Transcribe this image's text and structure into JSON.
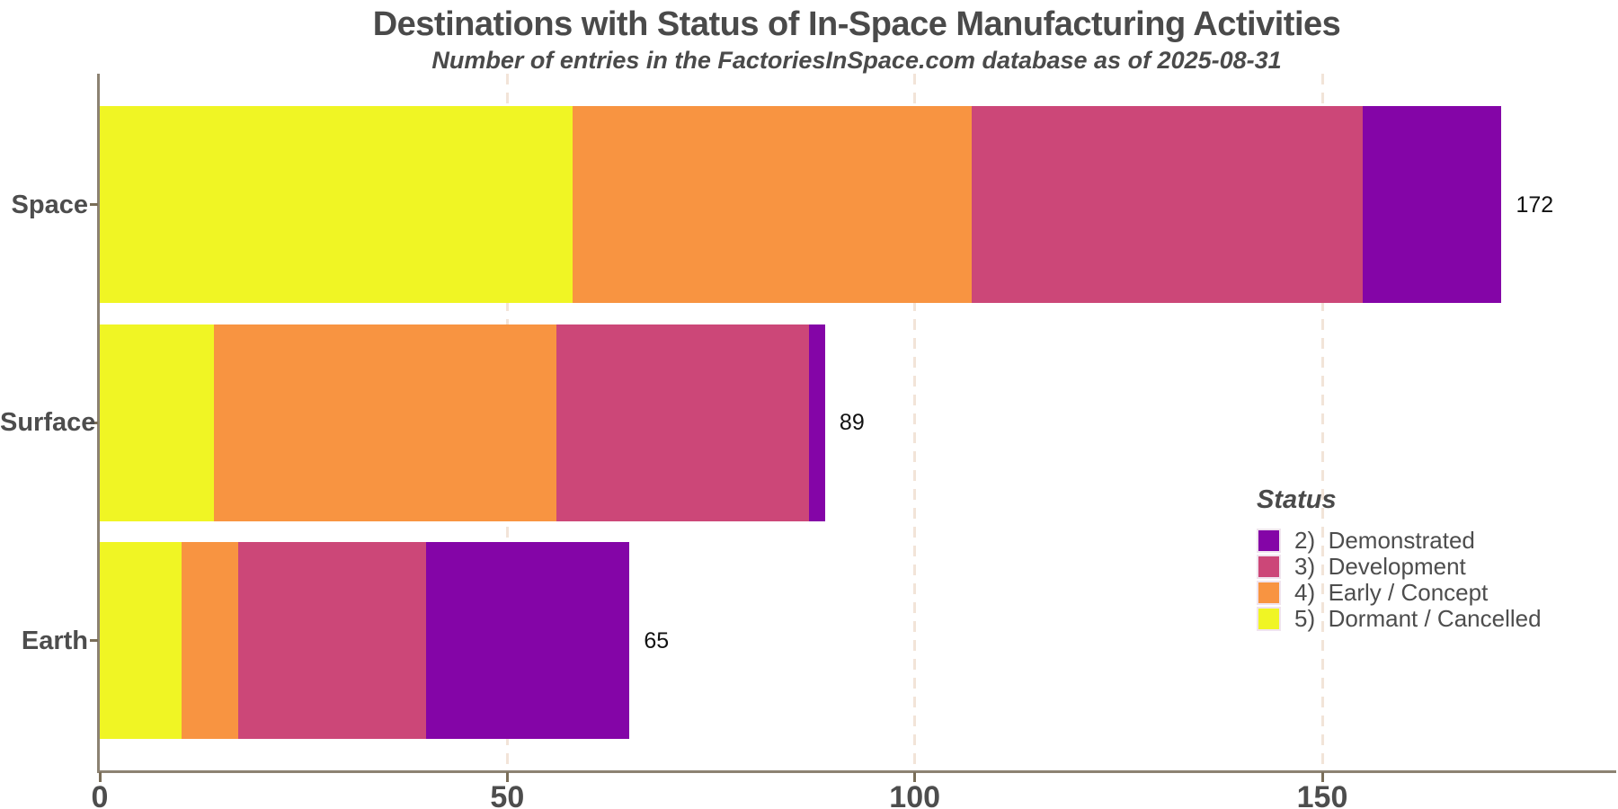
{
  "title": "Destinations with Status of In-Space Manufacturing Activities",
  "subtitle": "Number of entries in the FactoriesInSpace.com database as of 2025-08-31",
  "chart_data": {
    "type": "bar",
    "orientation": "horizontal",
    "stacked": true,
    "title": "Destinations with Status of In-Space Manufacturing Activities",
    "subtitle": "Number of entries in the FactoriesInSpace.com database as of 2025-08-31",
    "categories": [
      "Space",
      "Surface",
      "Earth"
    ],
    "totals": [
      172,
      89,
      65
    ],
    "series": [
      {
        "name": "2)  Demonstrated",
        "color": "#8405A7",
        "values": [
          17,
          2,
          25
        ]
      },
      {
        "name": "3)  Development",
        "color": "#CC4778",
        "values": [
          48,
          31,
          23
        ]
      },
      {
        "name": "4)  Early / Concept",
        "color": "#F89441",
        "values": [
          49,
          42,
          7
        ]
      },
      {
        "name": "5)  Dormant / Cancelled",
        "color": "#F0F524",
        "values": [
          58,
          14,
          10
        ]
      }
    ],
    "stack_order_left_to_right": [
      "5)  Dormant / Cancelled",
      "4)  Early / Concept",
      "3)  Development",
      "2)  Demonstrated"
    ],
    "x_ticks": [
      "0",
      "50",
      "100",
      "150"
    ],
    "x_range": [
      0,
      186
    ],
    "grid": "vertical dashed gridlines at 50, 100, 150",
    "legend": {
      "title": "Status",
      "position": "inside right"
    }
  },
  "colors": {
    "axis_line": "#8C8272",
    "tick_mark": "#7A6E58",
    "gridline": "#F2E4D8",
    "heading_text": "#4A4A4A",
    "axis_text": "#4D4D4D",
    "value_label_text": "#111111",
    "background": "#FFFFFF"
  }
}
